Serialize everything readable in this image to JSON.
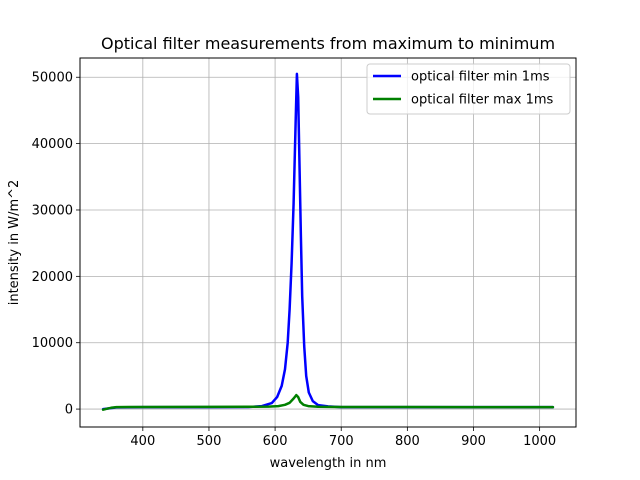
{
  "chart_data": {
    "type": "line",
    "title": "Optical filter measurements from maximum to minimum",
    "xlabel": "wavelength in nm",
    "ylabel": "intensity in W/m^2",
    "xlim": [
      305,
      1055
    ],
    "ylim": [
      -2700,
      52900
    ],
    "xticks": [
      400,
      500,
      600,
      700,
      800,
      900,
      1000
    ],
    "yticks": [
      0,
      10000,
      20000,
      30000,
      40000,
      50000
    ],
    "grid": true,
    "legend_position": "top-right",
    "series": [
      {
        "name": "optical filter min 1ms",
        "color": "#0000ff",
        "points": [
          [
            340,
            0
          ],
          [
            352,
            150
          ],
          [
            360,
            250
          ],
          [
            400,
            300
          ],
          [
            500,
            300
          ],
          [
            560,
            320
          ],
          [
            580,
            450
          ],
          [
            595,
            900
          ],
          [
            603,
            1800
          ],
          [
            610,
            3500
          ],
          [
            615,
            6000
          ],
          [
            619,
            10000
          ],
          [
            622,
            15000
          ],
          [
            625,
            22000
          ],
          [
            628,
            31000
          ],
          [
            631,
            43000
          ],
          [
            633,
            50500
          ],
          [
            635,
            47000
          ],
          [
            637,
            36000
          ],
          [
            639,
            26000
          ],
          [
            641,
            17000
          ],
          [
            644,
            9500
          ],
          [
            647,
            5000
          ],
          [
            651,
            2500
          ],
          [
            657,
            1200
          ],
          [
            665,
            600
          ],
          [
            680,
            400
          ],
          [
            700,
            300
          ],
          [
            800,
            300
          ],
          [
            900,
            300
          ],
          [
            1020,
            300
          ]
        ]
      },
      {
        "name": "optical filter max 1ms",
        "color": "#008000",
        "points": [
          [
            340,
            -100
          ],
          [
            346,
            50
          ],
          [
            352,
            200
          ],
          [
            360,
            300
          ],
          [
            400,
            320
          ],
          [
            500,
            330
          ],
          [
            560,
            340
          ],
          [
            590,
            380
          ],
          [
            605,
            450
          ],
          [
            615,
            650
          ],
          [
            622,
            950
          ],
          [
            628,
            1600
          ],
          [
            632,
            2100
          ],
          [
            635,
            1800
          ],
          [
            638,
            1100
          ],
          [
            643,
            650
          ],
          [
            650,
            450
          ],
          [
            665,
            350
          ],
          [
            700,
            320
          ],
          [
            800,
            310
          ],
          [
            900,
            300
          ],
          [
            1020,
            300
          ]
        ]
      }
    ]
  }
}
